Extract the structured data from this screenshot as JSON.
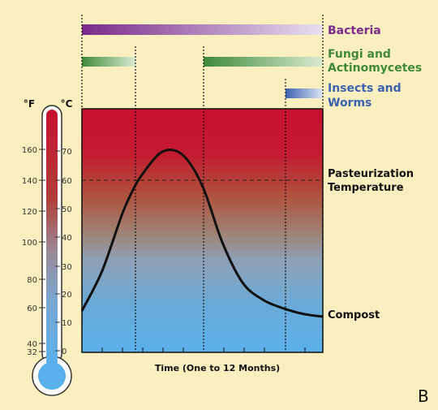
{
  "panel_letter": "B",
  "organisms": [
    {
      "label": "Bacteria",
      "color": "#7a2a8a"
    },
    {
      "label": "Fungi and Actinomycetes",
      "line1": "Fungi and",
      "line2": "Actinomycetes",
      "color": "#3f8a3a"
    },
    {
      "label": "Insects and Worms",
      "line1": "Insects and",
      "line2": "Worms",
      "color": "#3a62b0"
    }
  ],
  "thermometer": {
    "f_unit": "°F",
    "c_unit": "°C",
    "f_ticks": [
      "160",
      "140",
      "120",
      "100",
      "80",
      "60",
      "40",
      "32"
    ],
    "c_ticks": [
      "70",
      "60",
      "50",
      "40",
      "30",
      "20",
      "10",
      "0"
    ]
  },
  "chart": {
    "xlabel": "Time (One to 12 Months)",
    "threshold_label_line1": "Pasteurization",
    "threshold_label_line2": "Temperature",
    "curve_label": "Compost",
    "threshold_c": 60
  },
  "chart_data": {
    "type": "line",
    "xlabel": "Time (One to 12 Months)",
    "ylabel": "",
    "ylim": [
      0,
      80
    ],
    "series": [
      {
        "name": "Compost",
        "x": [
          0,
          1,
          2,
          2.5,
          3,
          4,
          5,
          6,
          7,
          8,
          9,
          10,
          11,
          12
        ],
        "values": [
          14,
          28,
          48,
          56,
          62,
          70,
          69,
          58,
          38,
          24,
          18,
          15,
          13,
          12
        ]
      }
    ],
    "reference_line": {
      "y": 60,
      "label": "Pasteurization Temperature"
    }
  }
}
